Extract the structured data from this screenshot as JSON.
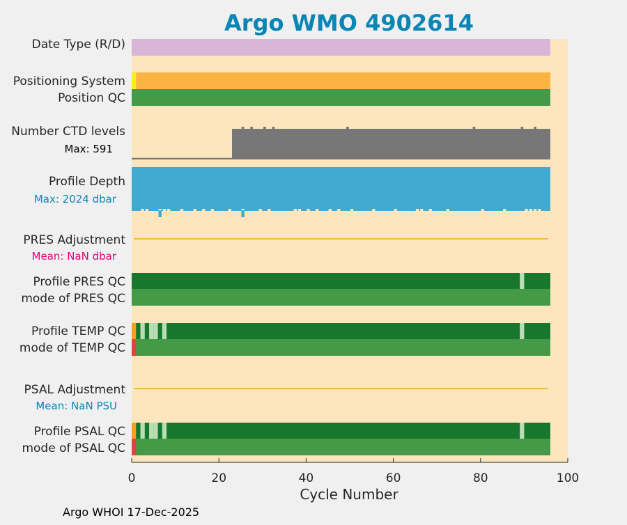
{
  "colors": {
    "background": "#f0f0f0",
    "axes_bg": "#fde6bd",
    "title": "#0a86b5",
    "date_type": "#d9b6d8",
    "pos_system": "#fbb442",
    "pos_system_first": "#f5f017",
    "qc_good": "#459a47",
    "qc_profile": "#17772c",
    "qc_light": "#b9ddb4",
    "qc_orange": "#f9a01a",
    "qc_red": "#e84040",
    "ctd": "#777777",
    "depth": "#41a9d2",
    "adjust_line": "#f5b64a",
    "pres_mean": "#e4007e",
    "psal_mean": "#0a86b5"
  },
  "chart_data": {
    "type": "bar",
    "title": "Argo WMO 4902614",
    "xlabel": "Cycle Number",
    "xlim": [
      0,
      100
    ],
    "xticks": [
      0,
      20,
      40,
      60,
      80,
      100
    ],
    "n_cycles": 96,
    "footer": "Argo WHOI 17-Dec-2025",
    "rows": {
      "date_type": {
        "label": "Date Type (R/D)",
        "value": "R"
      },
      "positioning": {
        "label": "Positioning System",
        "first_cycle_system": "cycle 0",
        "qc_label": "Position QC",
        "qc": "1"
      },
      "ctd": {
        "label": "Number CTD levels",
        "max_text": "Max: 591",
        "max": 591,
        "segments": [
          {
            "from": 0,
            "to": 23,
            "levels": 30
          },
          {
            "from": 23,
            "to": 96,
            "levels": 591
          }
        ],
        "spike_cycles": [
          25,
          27,
          30,
          32,
          49,
          78,
          89,
          92
        ]
      },
      "depth": {
        "label": "Profile Depth",
        "max_text": "Max: 2024 dbar",
        "max": 2024,
        "typical": 2000,
        "dip_cycles": [
          2,
          3,
          6,
          7,
          8,
          11,
          14,
          16,
          18,
          22,
          25,
          29,
          31,
          37,
          38,
          40,
          42,
          45,
          47,
          50,
          55,
          60,
          65,
          66,
          68,
          72,
          80,
          85,
          90,
          91,
          92,
          93
        ],
        "spike_cycles": [
          6,
          25
        ]
      },
      "pres_adjust": {
        "label": "PRES Adjustment",
        "mean_text": "Mean:  NaN dbar"
      },
      "pres_qc": {
        "label": "Profile PRES QC",
        "mode_label": "mode of PRES QC",
        "light_cycles": [
          89
        ]
      },
      "temp_qc": {
        "label": "Profile TEMP QC",
        "mode_label": "mode of TEMP QC",
        "orange_cycles": [
          0
        ],
        "light_cycles": [
          2,
          4,
          5,
          7,
          89
        ],
        "mode_red_cycles": [
          0
        ]
      },
      "psal_adjust": {
        "label": "PSAL Adjustment",
        "mean_text": "Mean:  NaN PSU"
      },
      "psal_qc": {
        "label": "Profile PSAL QC",
        "mode_label": "mode of PSAL QC",
        "orange_cycles": [
          0
        ],
        "light_cycles": [
          2,
          4,
          5,
          7,
          89
        ],
        "mode_red_cycles": [
          0
        ]
      }
    }
  }
}
